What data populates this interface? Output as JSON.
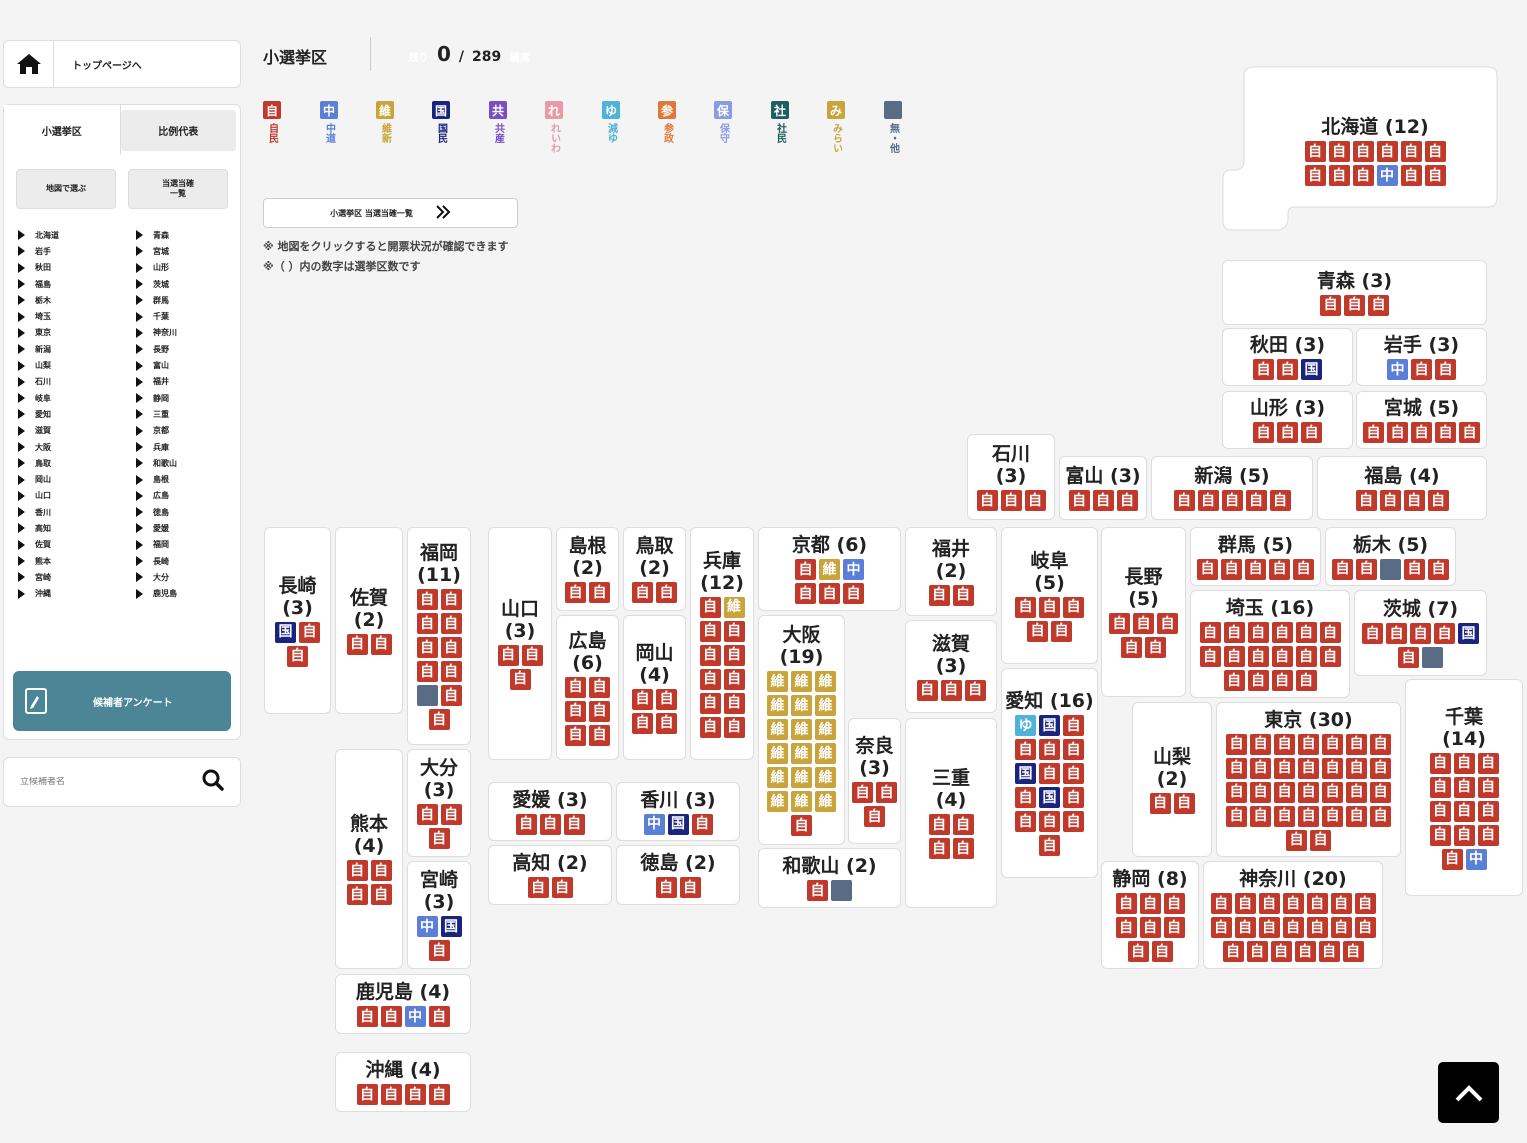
{
  "home": {
    "label": "トップページへ"
  },
  "tabs": [
    {
      "label": "小選挙区"
    },
    {
      "label": "比例代表"
    }
  ],
  "side_buttons": [
    {
      "label": "地図で選ぶ"
    },
    {
      "label": "当選当確\n一覧"
    }
  ],
  "prefs_col1": [
    "北海道",
    "岩手",
    "秋田",
    "福島",
    "栃木",
    "埼玉",
    "東京",
    "新潟",
    "山梨",
    "石川",
    "岐阜",
    "愛知",
    "滋賀",
    "大阪",
    "鳥取",
    "岡山",
    "山口",
    "香川",
    "高知",
    "佐賀",
    "熊本",
    "宮崎",
    "沖縄"
  ],
  "prefs_col2": [
    "青森",
    "宮城",
    "山形",
    "茨城",
    "群馬",
    "千葉",
    "神奈川",
    "長野",
    "富山",
    "福井",
    "静岡",
    "三重",
    "京都",
    "兵庫",
    "和歌山",
    "島根",
    "広島",
    "徳島",
    "愛媛",
    "福岡",
    "長崎",
    "大分",
    "鹿児島"
  ],
  "survey_label": "候補者アンケート",
  "search_placeholder": "立候補者名",
  "header": {
    "title": "小選挙区",
    "remain_label": "残り",
    "remain_value": "0",
    "slash": "/",
    "total": "289",
    "unit": "議席"
  },
  "parties": [
    {
      "key": "jimin",
      "abbr": "自",
      "name": "自民",
      "color": "#c0392b"
    },
    {
      "key": "chudo",
      "abbr": "中",
      "name": "中道",
      "color": "#5b7fd6"
    },
    {
      "key": "ishin",
      "abbr": "維",
      "name": "維新",
      "color": "#c9a43a"
    },
    {
      "key": "kokumin",
      "abbr": "国",
      "name": "国民",
      "color": "#1a237e"
    },
    {
      "key": "kyosan",
      "abbr": "共",
      "name": "共産",
      "color": "#7b4fc4"
    },
    {
      "key": "reiwa",
      "abbr": "れ",
      "name": "れいわ",
      "color": "#e89aa6"
    },
    {
      "key": "genzei",
      "abbr": "ゆ",
      "name": "減ゆ",
      "color": "#4fb3d9"
    },
    {
      "key": "sansei",
      "abbr": "参",
      "name": "参政",
      "color": "#e0783a"
    },
    {
      "key": "hoshu",
      "abbr": "保",
      "name": "保守",
      "color": "#8c9be0"
    },
    {
      "key": "shamin",
      "abbr": "社",
      "name": "社民",
      "color": "#1e5e5e"
    },
    {
      "key": "mirai",
      "abbr": "み",
      "name": "みらい",
      "color": "#c9a43a"
    },
    {
      "key": "other",
      "abbr": "",
      "name": "無・他",
      "color": "#5a6b86"
    }
  ],
  "list_button": "小選挙区 当選当確一覧",
  "notes": [
    "※ 地図をクリックすると開票状況が確認できます",
    "※（ ）内の数字は選挙区数です"
  ],
  "prefectures": [
    {
      "id": "hokkaido",
      "label": "北海道 (12)",
      "seats": [
        "自",
        "自",
        "自",
        "自",
        "自",
        "自",
        "自",
        "自",
        "自",
        "中",
        "自",
        "自"
      ]
    },
    {
      "id": "aomori",
      "label": "青森 (3)",
      "seats": [
        "自",
        "自",
        "自"
      ]
    },
    {
      "id": "akita",
      "label": "秋田 (3)",
      "seats": [
        "自",
        "自",
        "国"
      ]
    },
    {
      "id": "iwate",
      "label": "岩手 (3)",
      "seats": [
        "中",
        "自",
        "自"
      ]
    },
    {
      "id": "yamagata",
      "label": "山形 (3)",
      "seats": [
        "自",
        "自",
        "自"
      ]
    },
    {
      "id": "miyagi",
      "label": "宮城 (5)",
      "seats": [
        "自",
        "自",
        "自",
        "自",
        "自"
      ]
    },
    {
      "id": "ishikawa",
      "label": "石川\n(3)",
      "seats": [
        "自",
        "自",
        "自"
      ]
    },
    {
      "id": "toyama",
      "label": "富山 (3)",
      "seats": [
        "自",
        "自",
        "自"
      ]
    },
    {
      "id": "niigata",
      "label": "新潟 (5)",
      "seats": [
        "自",
        "自",
        "自",
        "自",
        "自"
      ]
    },
    {
      "id": "fukushima",
      "label": "福島 (4)",
      "seats": [
        "自",
        "自",
        "自",
        "自"
      ]
    },
    {
      "id": "nagasaki",
      "label": "長崎\n(3)",
      "seats": [
        "国",
        "自",
        "自"
      ]
    },
    {
      "id": "saga",
      "label": "佐賀\n(2)",
      "seats": [
        "自",
        "自"
      ]
    },
    {
      "id": "fukuoka",
      "label": "福岡\n(11)",
      "seats": [
        "自",
        "自",
        "自",
        "自",
        "自",
        "自",
        "自",
        "自",
        "他",
        "自",
        "自"
      ]
    },
    {
      "id": "yamaguchi",
      "label": "山口\n(3)",
      "seats": [
        "自",
        "自",
        "自"
      ]
    },
    {
      "id": "shimane",
      "label": "島根\n(2)",
      "seats": [
        "自",
        "自"
      ]
    },
    {
      "id": "tottori",
      "label": "鳥取\n(2)",
      "seats": [
        "自",
        "自"
      ]
    },
    {
      "id": "hyogo",
      "label": "兵庫\n(12)",
      "seats": [
        "自",
        "維",
        "自",
        "自",
        "自",
        "自",
        "自",
        "自",
        "自",
        "自",
        "自",
        "自"
      ]
    },
    {
      "id": "kyoto",
      "label": "京都 (6)",
      "seats": [
        "自",
        "維",
        "中",
        "自",
        "自",
        "自"
      ]
    },
    {
      "id": "fukui",
      "label": "福井\n(2)",
      "seats": [
        "自",
        "自"
      ]
    },
    {
      "id": "gifu",
      "label": "岐阜\n(5)",
      "seats": [
        "自",
        "自",
        "自",
        "自",
        "自"
      ]
    },
    {
      "id": "nagano",
      "label": "長野\n(5)",
      "seats": [
        "自",
        "自",
        "自",
        "自",
        "自"
      ]
    },
    {
      "id": "gunma",
      "label": "群馬 (5)",
      "seats": [
        "自",
        "自",
        "自",
        "自",
        "自"
      ]
    },
    {
      "id": "tochigi",
      "label": "栃木 (5)",
      "seats": [
        "自",
        "自",
        "他",
        "自",
        "自"
      ]
    },
    {
      "id": "hiroshima",
      "label": "広島\n(6)",
      "seats": [
        "自",
        "自",
        "自",
        "自",
        "自",
        "自"
      ]
    },
    {
      "id": "okayama",
      "label": "岡山\n(4)",
      "seats": [
        "自",
        "自",
        "自",
        "自"
      ]
    },
    {
      "id": "osaka",
      "label": "大阪\n(19)",
      "seats": [
        "維",
        "維",
        "維",
        "維",
        "維",
        "維",
        "維",
        "維",
        "維",
        "維",
        "維",
        "維",
        "維",
        "維",
        "維",
        "維",
        "維",
        "維",
        "自"
      ]
    },
    {
      "id": "shiga",
      "label": "滋賀\n(3)",
      "seats": [
        "自",
        "自",
        "自"
      ]
    },
    {
      "id": "aichi",
      "label": "愛知 (16)",
      "seats": [
        "ゆ",
        "国",
        "自",
        "自",
        "自",
        "自",
        "国",
        "自",
        "自",
        "自",
        "国",
        "自",
        "自",
        "自",
        "自",
        "自"
      ]
    },
    {
      "id": "saitama",
      "label": "埼玉 (16)",
      "seats": [
        "自",
        "自",
        "自",
        "自",
        "自",
        "自",
        "自",
        "自",
        "自",
        "自",
        "自",
        "自",
        "自",
        "自",
        "自",
        "自"
      ]
    },
    {
      "id": "ibaraki",
      "label": "茨城 (7)",
      "seats": [
        "自",
        "自",
        "自",
        "自",
        "国",
        "自",
        "他"
      ]
    },
    {
      "id": "chiba",
      "label": "千葉\n(14)",
      "seats": [
        "自",
        "自",
        "自",
        "自",
        "自",
        "自",
        "自",
        "自",
        "自",
        "自",
        "自",
        "自",
        "自",
        "中"
      ]
    },
    {
      "id": "yamanashi",
      "label": "山梨\n(2)",
      "seats": [
        "自",
        "自"
      ]
    },
    {
      "id": "tokyo",
      "label": "東京 (30)",
      "seats": [
        "自",
        "自",
        "自",
        "自",
        "自",
        "自",
        "自",
        "自",
        "自",
        "自",
        "自",
        "自",
        "自",
        "自",
        "自",
        "自",
        "自",
        "自",
        "自",
        "自",
        "自",
        "自",
        "自",
        "自",
        "自",
        "自",
        "自",
        "自",
        "自",
        "自"
      ]
    },
    {
      "id": "oita",
      "label": "大分\n(3)",
      "seats": [
        "自",
        "自",
        "自"
      ]
    },
    {
      "id": "kumamoto",
      "label": "熊本\n(4)",
      "seats": [
        "自",
        "自",
        "自",
        "自"
      ]
    },
    {
      "id": "miyazaki",
      "label": "宮崎\n(3)",
      "seats": [
        "中",
        "国",
        "自"
      ]
    },
    {
      "id": "kagoshima",
      "label": "鹿児島 (4)",
      "seats": [
        "自",
        "自",
        "中",
        "自"
      ]
    },
    {
      "id": "okinawa",
      "label": "沖縄 (4)",
      "seats": [
        "自",
        "自",
        "自",
        "自"
      ]
    },
    {
      "id": "ehime",
      "label": "愛媛 (3)",
      "seats": [
        "自",
        "自",
        "自"
      ]
    },
    {
      "id": "kagawa",
      "label": "香川 (3)",
      "seats": [
        "中",
        "国",
        "自"
      ]
    },
    {
      "id": "kochi",
      "label": "高知 (2)",
      "seats": [
        "自",
        "自"
      ]
    },
    {
      "id": "tokushima",
      "label": "徳島 (2)",
      "seats": [
        "自",
        "自"
      ]
    },
    {
      "id": "nara",
      "label": "奈良\n(3)",
      "seats": [
        "自",
        "自",
        "自"
      ]
    },
    {
      "id": "mie",
      "label": "三重\n(4)",
      "seats": [
        "自",
        "自",
        "自",
        "自"
      ]
    },
    {
      "id": "wakayama",
      "label": "和歌山 (2)",
      "seats": [
        "自",
        "他"
      ]
    },
    {
      "id": "shizuoka",
      "label": "静岡 (8)",
      "seats": [
        "自",
        "自",
        "自",
        "自",
        "自",
        "自",
        "自",
        "自"
      ]
    },
    {
      "id": "kanagawa",
      "label": "神奈川 (20)",
      "seats": [
        "自",
        "自",
        "自",
        "自",
        "自",
        "自",
        "自",
        "自",
        "自",
        "自",
        "自",
        "自",
        "自",
        "自",
        "自",
        "自",
        "自",
        "自",
        "自",
        "自"
      ]
    }
  ]
}
